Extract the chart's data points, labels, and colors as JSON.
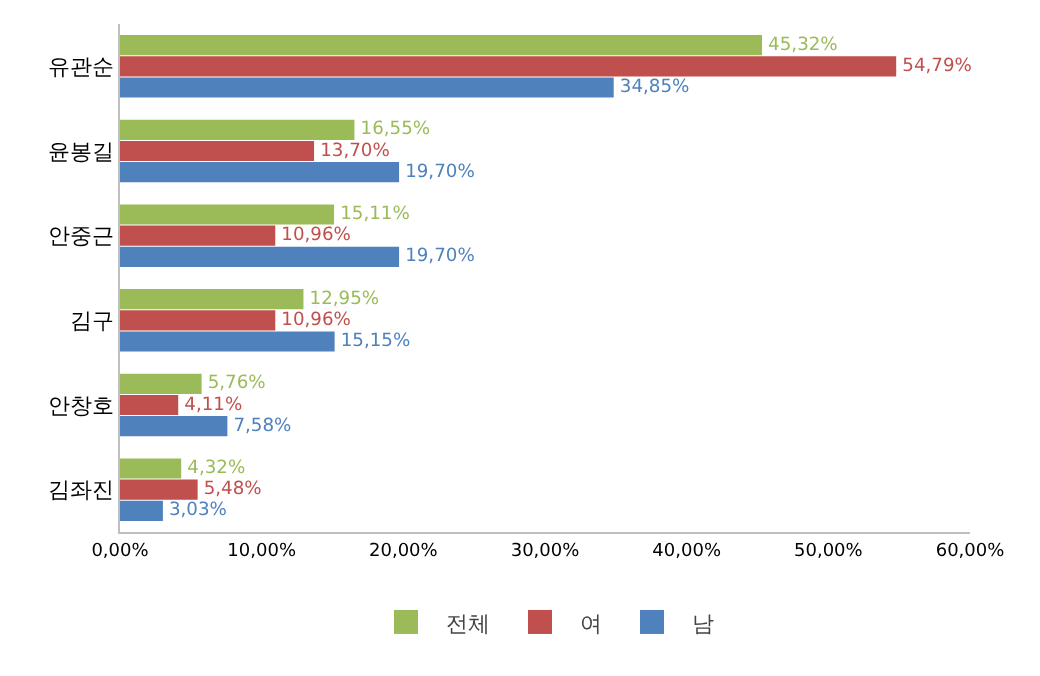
{
  "chart_data": {
    "type": "bar",
    "orientation": "horizontal",
    "categories": [
      "유관순",
      "윤봉길",
      "안중근",
      "김구",
      "안창호",
      "김좌진"
    ],
    "series": [
      {
        "name": "전체",
        "color": "#9bbb59",
        "values": [
          45.32,
          16.55,
          15.11,
          12.95,
          5.76,
          4.32
        ],
        "value_labels": [
          "45,32%",
          "16,55%",
          "15,11%",
          "12,95%",
          "5,76%",
          "4,32%"
        ]
      },
      {
        "name": "여",
        "color": "#c0504d",
        "values": [
          54.79,
          13.7,
          10.96,
          10.96,
          4.11,
          5.48
        ],
        "value_labels": [
          "54,79%",
          "13,70%",
          "10,96%",
          "10,96%",
          "4,11%",
          "5,48%"
        ]
      },
      {
        "name": "남",
        "color": "#4f81bd",
        "values": [
          34.85,
          19.7,
          19.7,
          15.15,
          7.58,
          3.03
        ],
        "value_labels": [
          "34,85%",
          "19,70%",
          "19,70%",
          "15,15%",
          "7,58%",
          "3,03%"
        ]
      }
    ],
    "xlim": [
      0,
      60
    ],
    "xticks": [
      {
        "value": 0,
        "label": "0,00%"
      },
      {
        "value": 10,
        "label": "10,00%"
      },
      {
        "value": 20,
        "label": "20,00%"
      },
      {
        "value": 30,
        "label": "30,00%"
      },
      {
        "value": 40,
        "label": "40,00%"
      },
      {
        "value": 50,
        "label": "50,00%"
      },
      {
        "value": 60,
        "label": "60,00%"
      }
    ],
    "grid": false,
    "legend": "bottom"
  }
}
